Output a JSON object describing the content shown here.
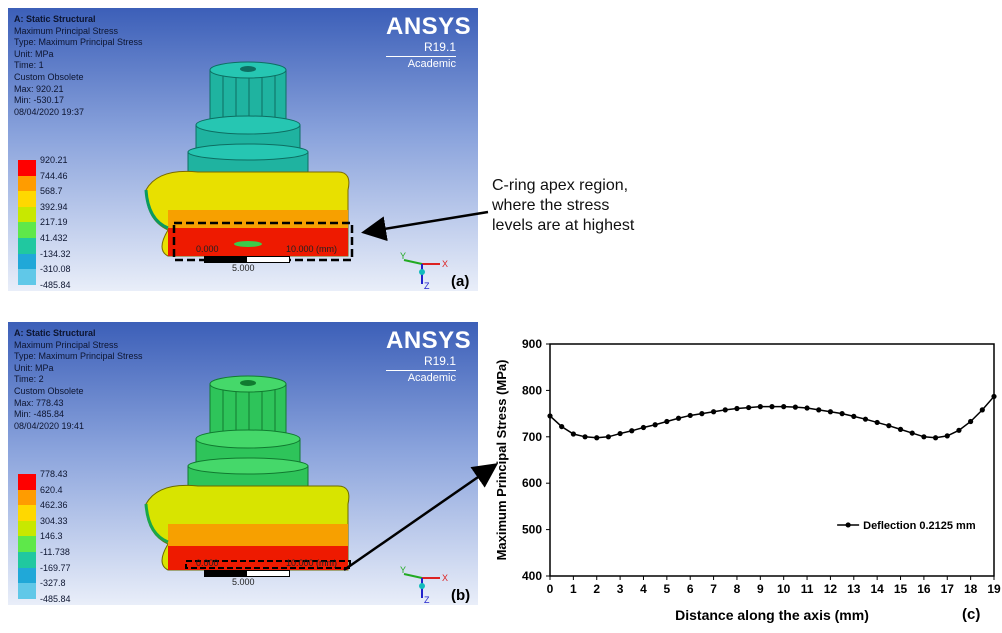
{
  "panels": [
    {
      "id": "a",
      "header": [
        "A: Static Structural",
        "Maximum Principal Stress",
        "Type: Maximum Principal Stress",
        "Unit: MPa",
        "Time: 1",
        "Custom Obsolete",
        "Max: 920.21",
        "Min: -530.17",
        "08/04/2020 19:37"
      ],
      "legend": [
        "920.21",
        "744.46",
        "568.7",
        "392.94",
        "217.19",
        "41.432",
        "-134.32",
        "-310.08",
        "-485.84"
      ],
      "label": "(a)",
      "scale": {
        "zero": "0.000",
        "max": "10.000 (mm)",
        "mid": "5.000"
      }
    },
    {
      "id": "b",
      "header": [
        "A: Static Structural",
        "Maximum Principal Stress",
        "Type: Maximum Principal Stress",
        "Unit: MPa",
        "Time: 2",
        "Custom Obsolete",
        "Max: 778.43",
        "Min: -485.84",
        "08/04/2020 19:41"
      ],
      "legend": [
        "778.43",
        "620.4",
        "462.36",
        "304.33",
        "146.3",
        "-11.738",
        "-169.77",
        "-327.8",
        "-485.84"
      ],
      "label": "(b)",
      "scale": {
        "zero": "0.000",
        "max": "10.000 (mm)",
        "mid": "5.000"
      }
    }
  ],
  "ansys": {
    "logo": "ANSYS",
    "version": "R19.1",
    "edition": "Academic"
  },
  "legend_colors": [
    "#ff0000",
    "#ff9c00",
    "#ffd800",
    "#c8e800",
    "#5ee84a",
    "#20c8a0",
    "#20a8d8",
    "#60c8e8",
    "#c8f0f8"
  ],
  "triad": {
    "x": "X",
    "y": "Y",
    "z": "Z"
  },
  "callout": "C-ring apex region, where the stress levels are at highest",
  "chart_label": "(c)",
  "chart_data": {
    "type": "line",
    "xlabel": "Distance along the axis (mm)",
    "ylabel": "Maximum Principal Stress (MPa)",
    "xlim": [
      0,
      19
    ],
    "ylim": [
      400,
      900
    ],
    "xticks": [
      0,
      1,
      2,
      3,
      4,
      5,
      6,
      7,
      8,
      9,
      10,
      11,
      12,
      13,
      14,
      15,
      16,
      17,
      18,
      19
    ],
    "yticks": [
      400,
      500,
      600,
      700,
      800,
      900
    ],
    "legend_position": "lower-right",
    "series": [
      {
        "name": "Deflection 0.2125 mm",
        "color": "#000000",
        "x": [
          0,
          0.5,
          1,
          1.5,
          2,
          2.5,
          3,
          3.5,
          4,
          4.5,
          5,
          5.5,
          6,
          6.5,
          7,
          7.5,
          8,
          8.5,
          9,
          9.5,
          10,
          10.5,
          11,
          11.5,
          12,
          12.5,
          13,
          13.5,
          14,
          14.5,
          15,
          15.5,
          16,
          16.5,
          17,
          17.5,
          18,
          18.5,
          19
        ],
        "y": [
          745,
          722,
          706,
          700,
          698,
          700,
          707,
          713,
          720,
          726,
          733,
          740,
          746,
          750,
          754,
          758,
          761,
          763,
          765,
          765,
          765,
          764,
          762,
          758,
          754,
          750,
          744,
          738,
          731,
          724,
          716,
          708,
          700,
          698,
          702,
          714,
          733,
          758,
          787
        ]
      }
    ]
  }
}
